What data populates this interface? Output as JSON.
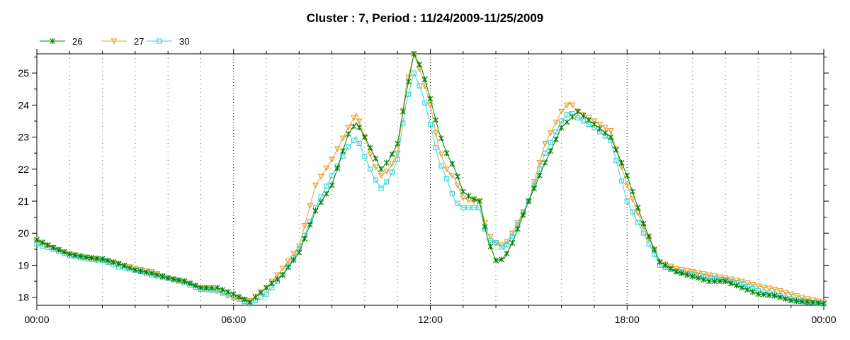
{
  "chart_data": {
    "type": "line",
    "title": "Cluster : 7, Period : 11/24/2009-11/25/2009",
    "xlabel": "",
    "ylabel": "",
    "x_ticks": [
      "00:00",
      "06:00",
      "12:00",
      "18:00",
      "00:00"
    ],
    "x_tick_hours": [
      0,
      6,
      12,
      18,
      24
    ],
    "xlim": [
      0,
      24
    ],
    "y_ticks": [
      18,
      19,
      20,
      21,
      22,
      23,
      24,
      25
    ],
    "ylim": [
      17.75,
      25.6
    ],
    "grid": "vertical dotted",
    "legend_position": "top-left",
    "series": [
      {
        "name": "26",
        "color": "#008000",
        "marker": "x",
        "points": [
          [
            0,
            19.8
          ],
          [
            0.5,
            19.55
          ],
          [
            1,
            19.35
          ],
          [
            1.5,
            19.25
          ],
          [
            2,
            19.2
          ],
          [
            2.5,
            19.05
          ],
          [
            3,
            18.85
          ],
          [
            3.5,
            18.75
          ],
          [
            4,
            18.6
          ],
          [
            4.5,
            18.5
          ],
          [
            5,
            18.3
          ],
          [
            5.5,
            18.3
          ],
          [
            6,
            18.1
          ],
          [
            6.5,
            17.85
          ],
          [
            7,
            18.3
          ],
          [
            7.5,
            18.7
          ],
          [
            8,
            19.4
          ],
          [
            8.5,
            20.7
          ],
          [
            9,
            21.5
          ],
          [
            9.5,
            23.1
          ],
          [
            9.75,
            23.45
          ],
          [
            10,
            23.0
          ],
          [
            10.25,
            22.5
          ],
          [
            10.5,
            22.0
          ],
          [
            10.75,
            22.3
          ],
          [
            11,
            22.8
          ],
          [
            11.25,
            24.3
          ],
          [
            11.5,
            25.6
          ],
          [
            11.75,
            25.1
          ],
          [
            12,
            24.2
          ],
          [
            12.25,
            23.2
          ],
          [
            12.5,
            22.5
          ],
          [
            12.75,
            22.0
          ],
          [
            13,
            21.3
          ],
          [
            13.25,
            21.1
          ],
          [
            13.5,
            21.0
          ],
          [
            13.75,
            19.8
          ],
          [
            14,
            19.15
          ],
          [
            14.25,
            19.2
          ],
          [
            14.5,
            19.7
          ],
          [
            15,
            21.0
          ],
          [
            15.5,
            22.2
          ],
          [
            16,
            23.3
          ],
          [
            16.5,
            23.8
          ],
          [
            17,
            23.4
          ],
          [
            17.5,
            23.0
          ],
          [
            18,
            21.8
          ],
          [
            18.5,
            20.3
          ],
          [
            19,
            19.1
          ],
          [
            19.5,
            18.8
          ],
          [
            20,
            18.65
          ],
          [
            20.5,
            18.5
          ],
          [
            21,
            18.5
          ],
          [
            21.5,
            18.3
          ],
          [
            22,
            18.1
          ],
          [
            22.5,
            18.05
          ],
          [
            23,
            17.9
          ],
          [
            23.5,
            17.85
          ],
          [
            24,
            17.8
          ]
        ]
      },
      {
        "name": "27",
        "color": "#e8a030",
        "marker": "triangle-down",
        "points": [
          [
            0,
            19.75
          ],
          [
            0.5,
            19.55
          ],
          [
            1,
            19.35
          ],
          [
            1.5,
            19.25
          ],
          [
            2,
            19.15
          ],
          [
            2.5,
            19.05
          ],
          [
            3,
            18.9
          ],
          [
            3.5,
            18.8
          ],
          [
            4,
            18.6
          ],
          [
            4.5,
            18.5
          ],
          [
            5,
            18.3
          ],
          [
            5.5,
            18.2
          ],
          [
            6,
            18.0
          ],
          [
            6.5,
            17.9
          ],
          [
            7,
            18.3
          ],
          [
            7.5,
            18.9
          ],
          [
            8,
            19.6
          ],
          [
            8.5,
            21.5
          ],
          [
            9,
            22.3
          ],
          [
            9.5,
            23.3
          ],
          [
            9.75,
            23.75
          ],
          [
            10,
            23.0
          ],
          [
            10.25,
            22.2
          ],
          [
            10.5,
            21.8
          ],
          [
            10.75,
            22.0
          ],
          [
            11,
            22.5
          ],
          [
            11.25,
            24.5
          ],
          [
            11.5,
            25.6
          ],
          [
            11.75,
            24.9
          ],
          [
            12,
            24.0
          ],
          [
            12.25,
            22.7
          ],
          [
            12.5,
            22.0
          ],
          [
            12.75,
            21.7
          ],
          [
            13,
            21.1
          ],
          [
            13.25,
            21.0
          ],
          [
            13.5,
            21.0
          ],
          [
            13.75,
            20.0
          ],
          [
            14,
            19.7
          ],
          [
            14.25,
            19.6
          ],
          [
            14.5,
            20.0
          ],
          [
            15,
            21.0
          ],
          [
            15.5,
            22.8
          ],
          [
            16,
            23.8
          ],
          [
            16.25,
            24.1
          ],
          [
            16.5,
            23.8
          ],
          [
            17,
            23.5
          ],
          [
            17.5,
            23.2
          ],
          [
            18,
            21.5
          ],
          [
            18.5,
            20.2
          ],
          [
            19,
            19.1
          ],
          [
            19.5,
            18.9
          ],
          [
            20,
            18.8
          ],
          [
            20.5,
            18.7
          ],
          [
            21,
            18.6
          ],
          [
            21.5,
            18.5
          ],
          [
            22,
            18.35
          ],
          [
            22.5,
            18.25
          ],
          [
            23,
            18.1
          ],
          [
            23.5,
            17.95
          ],
          [
            24,
            17.85
          ]
        ]
      },
      {
        "name": "30",
        "color": "#3cd4d4",
        "marker": "square",
        "points": [
          [
            0,
            19.65
          ],
          [
            0.5,
            19.5
          ],
          [
            1,
            19.3
          ],
          [
            1.5,
            19.2
          ],
          [
            2,
            19.15
          ],
          [
            2.5,
            18.95
          ],
          [
            3,
            18.85
          ],
          [
            3.5,
            18.7
          ],
          [
            4,
            18.6
          ],
          [
            4.5,
            18.45
          ],
          [
            5,
            18.25
          ],
          [
            5.5,
            18.2
          ],
          [
            6,
            18.0
          ],
          [
            6.5,
            17.8
          ],
          [
            7,
            18.1
          ],
          [
            7.5,
            18.7
          ],
          [
            8,
            19.5
          ],
          [
            8.5,
            20.8
          ],
          [
            9,
            21.8
          ],
          [
            9.5,
            22.7
          ],
          [
            9.75,
            23.0
          ],
          [
            10,
            22.4
          ],
          [
            10.25,
            21.8
          ],
          [
            10.5,
            21.4
          ],
          [
            10.75,
            21.7
          ],
          [
            11,
            22.3
          ],
          [
            11.25,
            24.0
          ],
          [
            11.5,
            25.0
          ],
          [
            11.75,
            24.4
          ],
          [
            12,
            23.4
          ],
          [
            12.25,
            22.3
          ],
          [
            12.5,
            21.7
          ],
          [
            12.75,
            21.0
          ],
          [
            13,
            20.8
          ],
          [
            13.25,
            20.8
          ],
          [
            13.5,
            20.8
          ],
          [
            13.75,
            19.8
          ],
          [
            14,
            19.7
          ],
          [
            14.25,
            19.5
          ],
          [
            14.5,
            19.9
          ],
          [
            15,
            21.0
          ],
          [
            15.5,
            22.5
          ],
          [
            16,
            23.5
          ],
          [
            16.25,
            23.8
          ],
          [
            16.5,
            23.6
          ],
          [
            17,
            23.3
          ],
          [
            17.5,
            22.9
          ],
          [
            18,
            21.0
          ],
          [
            18.5,
            20.0
          ],
          [
            19,
            19.0
          ],
          [
            19.5,
            18.8
          ],
          [
            20,
            18.7
          ],
          [
            20.5,
            18.6
          ],
          [
            21,
            18.55
          ],
          [
            21.5,
            18.4
          ],
          [
            22,
            18.2
          ],
          [
            22.5,
            18.1
          ],
          [
            23,
            17.95
          ],
          [
            23.5,
            17.85
          ],
          [
            24,
            17.8
          ]
        ]
      }
    ]
  }
}
